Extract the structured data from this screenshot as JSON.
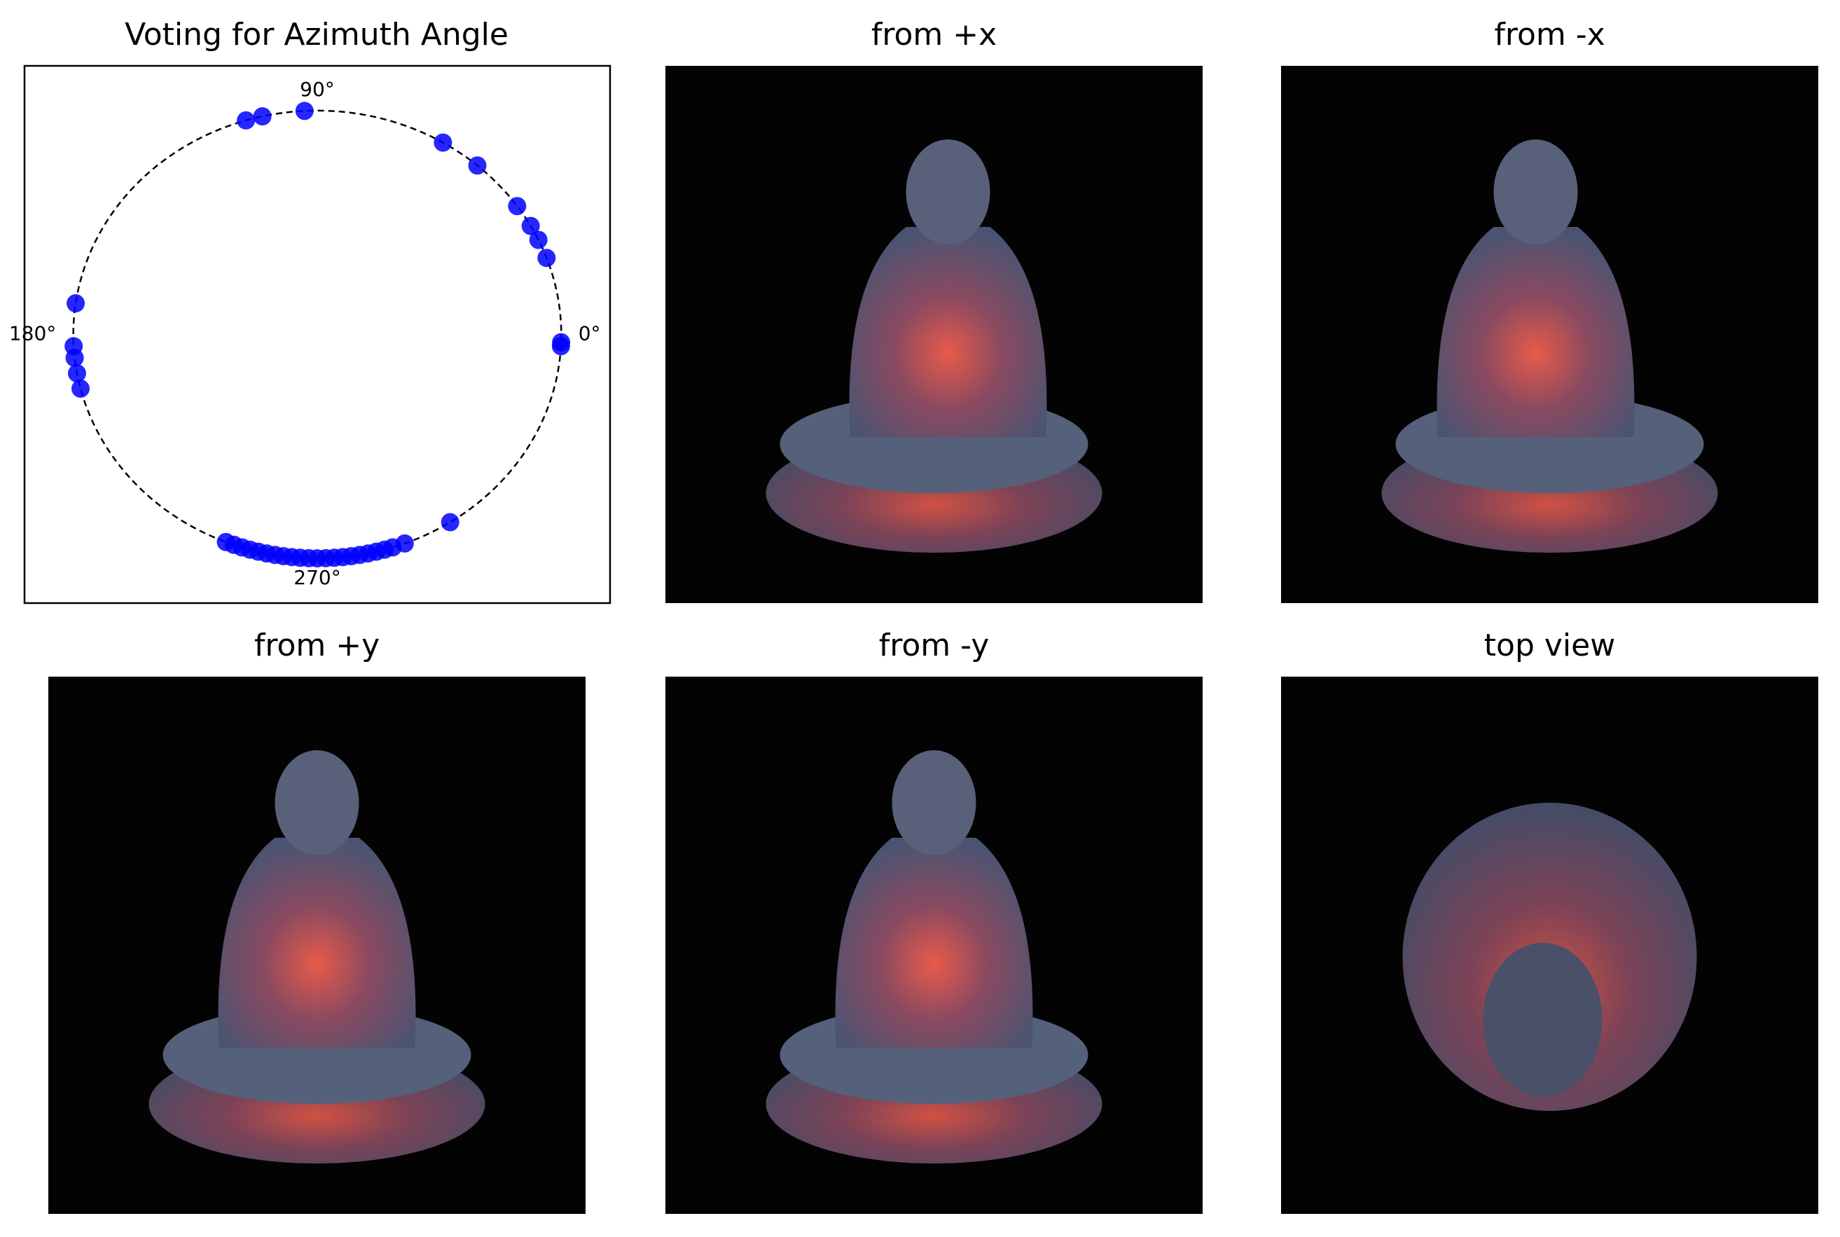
{
  "chart_data": {
    "type": "scatter",
    "title": "Voting for Azimuth Angle",
    "angles": [
      93,
      103,
      107,
      59,
      49,
      35,
      29,
      25,
      20,
      357,
      358,
      172,
      183,
      186,
      190,
      194,
      303,
      291,
      248,
      250,
      252,
      254,
      256,
      258,
      260,
      262,
      264,
      266,
      268,
      270,
      272,
      274,
      276,
      278,
      280,
      282,
      284,
      286,
      288
    ],
    "color": "#0000ff",
    "angle_ticks": [
      {
        "value": 0,
        "label": "0°"
      },
      {
        "value": 90,
        "label": "90°"
      },
      {
        "value": 180,
        "label": "180°"
      },
      {
        "value": 270,
        "label": "270°"
      }
    ],
    "xlim": [
      -1.2,
      1.2
    ],
    "ylim": [
      -1.2,
      1.2
    ]
  },
  "panels": [
    {
      "title": "from +x"
    },
    {
      "title": "from -x"
    },
    {
      "title": "from +y"
    },
    {
      "title": "from -y"
    },
    {
      "title": "top view"
    }
  ]
}
